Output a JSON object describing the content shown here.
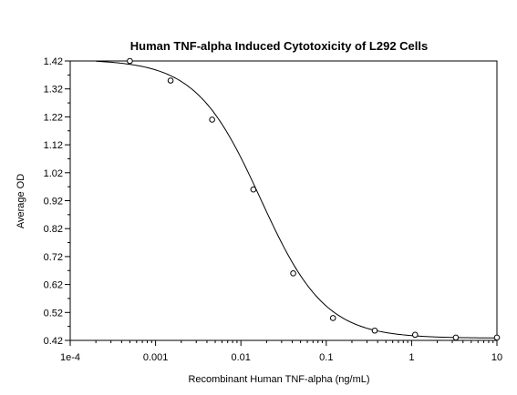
{
  "chart_data": {
    "type": "scatter",
    "title": "Human TNF-alpha Induced Cytotoxicity of L292 Cells",
    "xlabel": "Recombinant Human TNF-alpha (ng/mL)",
    "ylabel": "Average OD",
    "x_scale": "log",
    "xlim": [
      0.0001,
      10
    ],
    "ylim": [
      0.42,
      1.42
    ],
    "x_ticks": [
      {
        "value": 0.0001,
        "label": "1e-4"
      },
      {
        "value": 0.001,
        "label": "0.001"
      },
      {
        "value": 0.01,
        "label": "0.01"
      },
      {
        "value": 0.1,
        "label": "0.1"
      },
      {
        "value": 1,
        "label": "1"
      },
      {
        "value": 10,
        "label": "10"
      }
    ],
    "y_ticks": [
      {
        "value": 0.42,
        "label": "0.42"
      },
      {
        "value": 0.52,
        "label": "0.52"
      },
      {
        "value": 0.62,
        "label": "0.62"
      },
      {
        "value": 0.72,
        "label": "0.72"
      },
      {
        "value": 0.82,
        "label": "0.82"
      },
      {
        "value": 0.92,
        "label": "0.92"
      },
      {
        "value": 1.02,
        "label": "1.02"
      },
      {
        "value": 1.12,
        "label": "1.12"
      },
      {
        "value": 1.22,
        "label": "1.22"
      },
      {
        "value": 1.32,
        "label": "1.32"
      },
      {
        "value": 1.42,
        "label": "1.42"
      }
    ],
    "points": [
      {
        "x": 0.0005,
        "y": 1.42
      },
      {
        "x": 0.0015,
        "y": 1.35
      },
      {
        "x": 0.0046,
        "y": 1.21
      },
      {
        "x": 0.014,
        "y": 0.96
      },
      {
        "x": 0.041,
        "y": 0.66
      },
      {
        "x": 0.12,
        "y": 0.5
      },
      {
        "x": 0.37,
        "y": 0.455
      },
      {
        "x": 1.1,
        "y": 0.44
      },
      {
        "x": 3.3,
        "y": 0.43
      },
      {
        "x": 10,
        "y": 0.43
      }
    ],
    "fit": {
      "model": "4PL",
      "top": 1.425,
      "bottom": 0.428,
      "ec50": 0.017,
      "hill": 1.15
    },
    "grid": false,
    "legend": "none"
  }
}
